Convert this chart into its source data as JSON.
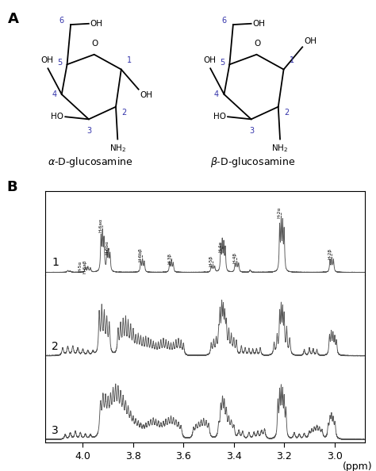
{
  "alpha_label": "α-D-glucosamine",
  "beta_label": "β-D-glucosamine",
  "xlabel": "(ppm)",
  "xmin": 2.88,
  "xmax": 4.15,
  "xticks": [
    4.0,
    3.8,
    3.6,
    3.4,
    3.2,
    3.0
  ],
  "spectrum_labels": [
    "1",
    "2",
    "3"
  ],
  "line_color": "#555555",
  "number_color": "#3333aa",
  "bg_color": "#ffffff",
  "fig_width": 4.74,
  "fig_height": 5.94,
  "dpi": 100
}
